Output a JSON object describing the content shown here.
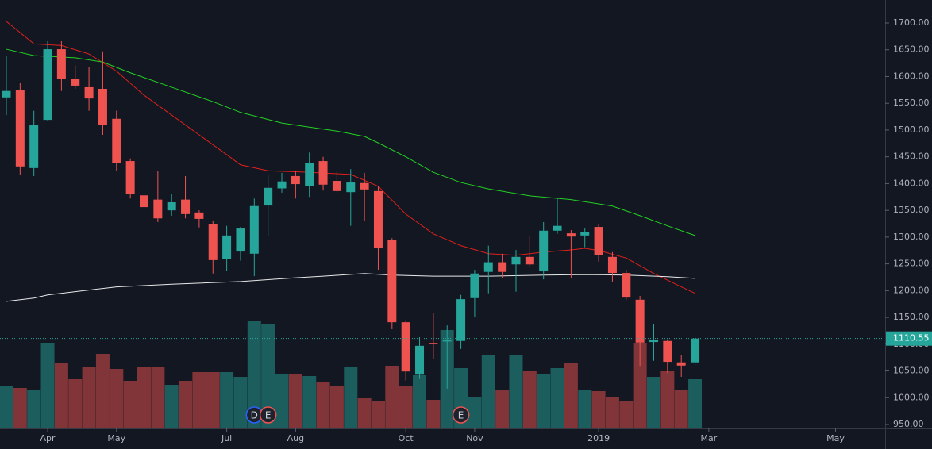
{
  "chart_data": {
    "type": "candlestick",
    "x": [
      0,
      1,
      2,
      3,
      4,
      5,
      6,
      7,
      8,
      9,
      10,
      11,
      12,
      13,
      14,
      15,
      16,
      17,
      18,
      19,
      20,
      21,
      22,
      23,
      24,
      25,
      26,
      27,
      28,
      29,
      30,
      31,
      32,
      33,
      34,
      35,
      36,
      37,
      38,
      39,
      40,
      41,
      42,
      43,
      44,
      45,
      46,
      47,
      48,
      49,
      50
    ],
    "open": [
      1561,
      1574,
      1429,
      1519,
      1651,
      1595,
      1580,
      1577,
      1521,
      1442,
      1378,
      1370,
      1350,
      1370,
      1346,
      1325,
      1259,
      1273,
      1269,
      1359,
      1391,
      1414,
      1396,
      1442,
      1405,
      1384,
      1401,
      1386,
      1295,
      1141,
      1043,
      1102,
      1105,
      1106,
      1186,
      1235,
      1253,
      1249,
      1263,
      1236,
      1312,
      1307,
      1303,
      1319,
      1263,
      1233,
      1183,
      1104,
      1106,
      1066,
      1066
    ],
    "high": [
      1639,
      1588,
      1536,
      1666,
      1666,
      1621,
      1617,
      1647,
      1536,
      1447,
      1387,
      1424,
      1380,
      1414,
      1350,
      1331,
      1321,
      1319,
      1372,
      1417,
      1420,
      1424,
      1458,
      1450,
      1424,
      1427,
      1420,
      1395,
      1298,
      1143,
      1113,
      1158,
      1135,
      1192,
      1239,
      1284,
      1269,
      1276,
      1303,
      1328,
      1374,
      1313,
      1316,
      1325,
      1272,
      1239,
      1190,
      1138,
      1109,
      1080,
      1113
    ],
    "low": [
      1528,
      1417,
      1414,
      1518,
      1573,
      1577,
      1536,
      1491,
      1424,
      1372,
      1287,
      1328,
      1340,
      1335,
      1318,
      1232,
      1236,
      1256,
      1227,
      1301,
      1383,
      1372,
      1375,
      1387,
      1383,
      1321,
      1331,
      1239,
      1128,
      1032,
      1035,
      1073,
      1017,
      1091,
      1150,
      1195,
      1224,
      1198,
      1245,
      1221,
      1306,
      1224,
      1281,
      1254,
      1217,
      1183,
      1058,
      1069,
      1046,
      1039,
      1058
    ],
    "close": [
      1573,
      1432,
      1509,
      1651,
      1595,
      1583,
      1559,
      1509,
      1439,
      1380,
      1356,
      1335,
      1365,
      1343,
      1334,
      1257,
      1303,
      1316,
      1358,
      1392,
      1404,
      1399,
      1438,
      1398,
      1386,
      1402,
      1389,
      1279,
      1141,
      1049,
      1097,
      1100,
      1107,
      1184,
      1232,
      1253,
      1235,
      1263,
      1249,
      1312,
      1321,
      1301,
      1310,
      1267,
      1233,
      1187,
      1103,
      1108,
      1067,
      1060,
      1110.55
    ],
    "volume": [
      53,
      51,
      48,
      107,
      82,
      62,
      77,
      94,
      75,
      60,
      77,
      77,
      55,
      60,
      71,
      71,
      71,
      65,
      135,
      132,
      69,
      68,
      66,
      58,
      54,
      77,
      38,
      35,
      78,
      54,
      67,
      36,
      124,
      76,
      40,
      93,
      48,
      93,
      72,
      69,
      76,
      82,
      48,
      47,
      39,
      34,
      108,
      65,
      72,
      48,
      62
    ],
    "up_color": "#26a69a",
    "down_color": "#ef5350",
    "lines": [
      {
        "color": "#e0201b",
        "x": [
          0,
          2,
          4,
          6,
          8,
          10,
          12,
          14,
          16,
          17,
          19,
          22,
          25,
          27,
          29,
          31,
          33,
          35,
          37,
          39,
          41,
          42,
          43,
          45,
          47,
          49,
          50
        ],
        "values": [
          1703,
          1661,
          1658,
          1642,
          1610,
          1565,
          1528,
          1491,
          1454,
          1435,
          1424,
          1421,
          1417,
          1395,
          1343,
          1306,
          1284,
          1269,
          1266,
          1272,
          1276,
          1279,
          1275,
          1261,
          1232,
          1207,
          1195
        ]
      },
      {
        "color": "#22d022",
        "x": [
          0,
          2,
          5,
          7,
          9,
          12,
          15,
          17,
          20,
          24,
          26,
          27,
          29,
          31,
          33,
          35,
          38,
          41,
          44,
          46,
          48,
          50
        ],
        "values": [
          1651,
          1639,
          1635,
          1627,
          1607,
          1580,
          1553,
          1533,
          1513,
          1498,
          1488,
          1476,
          1450,
          1421,
          1402,
          1390,
          1377,
          1370,
          1358,
          1340,
          1321,
          1303
        ]
      },
      {
        "color": "#e8e8e8",
        "x": [
          0,
          2,
          3,
          5,
          8,
          12,
          17,
          21,
          23,
          26,
          28,
          31,
          35,
          39,
          42,
          45,
          48,
          50
        ],
        "values": [
          1180,
          1186,
          1192,
          1198,
          1207,
          1212,
          1217,
          1224,
          1227,
          1232,
          1229,
          1227,
          1227,
          1229,
          1230,
          1229,
          1226,
          1223
        ]
      }
    ],
    "last_price": 1110.55,
    "xlim": [
      -0.46,
      63.8
    ],
    "xticks": [
      {
        "value": 3,
        "label": "Apr"
      },
      {
        "value": 8,
        "label": "May"
      },
      {
        "value": 16,
        "label": "Jul"
      },
      {
        "value": 21,
        "label": "Aug"
      },
      {
        "value": 29,
        "label": "Oct"
      },
      {
        "value": 34,
        "label": "Nov"
      },
      {
        "value": 43,
        "label": "2019"
      },
      {
        "value": 51,
        "label": "Mar"
      },
      {
        "value": 60.2,
        "label": "May"
      }
    ],
    "ylim": [
      950,
      1700
    ],
    "yticks": [
      {
        "value": 950,
        "label": "950.00"
      },
      {
        "value": 1000,
        "label": "1000.00"
      },
      {
        "value": 1050,
        "label": "1050.00"
      },
      {
        "value": 1100,
        "label": "1100.00"
      },
      {
        "value": 1150,
        "label": "1150.00"
      },
      {
        "value": 1200,
        "label": "1200.00"
      },
      {
        "value": 1250,
        "label": "1250.00"
      },
      {
        "value": 1300,
        "label": "1300.00"
      },
      {
        "value": 1350,
        "label": "1350.00"
      },
      {
        "value": 1400,
        "label": "1400.00"
      },
      {
        "value": 1450,
        "label": "1450.00"
      },
      {
        "value": 1500,
        "label": "1500.00"
      },
      {
        "value": 1550,
        "label": "1550.00"
      },
      {
        "value": 1600,
        "label": "1600.00"
      },
      {
        "value": 1650,
        "label": "1650.00"
      },
      {
        "value": 1700,
        "label": "1700.00"
      }
    ],
    "vlim": [
      0,
      180
    ],
    "events": [
      {
        "label": "D",
        "x": 18,
        "color": "#2962ff"
      },
      {
        "label": "E",
        "x": 19,
        "color": "#ef5350"
      },
      {
        "label": "E",
        "x": 33,
        "color": "#ef5350"
      }
    ]
  }
}
